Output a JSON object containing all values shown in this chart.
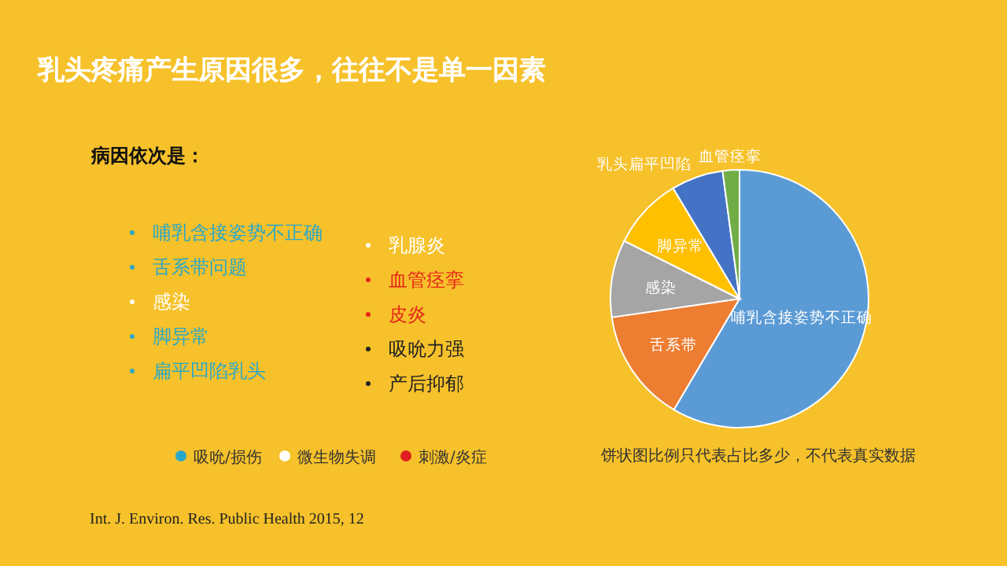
{
  "chart_data": [
    {
      "type": "pie",
      "title": "乳头疼痛产生原因很多，往往不是单一因素",
      "categories": [
        "哺乳含接姿势不正确",
        "舌系带",
        "感染",
        "脚异常",
        "乳头扁平凹陷",
        "血管痉挛"
      ],
      "values": [
        58.5,
        14.2,
        9.7,
        9,
        6.5,
        2.1
      ],
      "colors": [
        "#5b9bd5",
        "#ed7d31",
        "#a5a5a5",
        "#ffc000",
        "#4472c4",
        "#70ad47"
      ],
      "annotations": [
        "饼状图比例只代表占比多少，不代表真实数据",
        "Int. J. Environ. Res. Public Health 2015, 12"
      ]
    },
    {
      "type": "other",
      "title": "病因依次是：",
      "categories": [
        "哺乳含接姿势不正确",
        "舌系带问题",
        "感染",
        "脚异常",
        "扁平凹陷乳头",
        "乳腺炎",
        "血管痉挛",
        "皮炎",
        "吸吮力强",
        "产后抑郁"
      ],
      "colors": [
        "#2aa8c8",
        "#2aa8c8",
        "#ffffff",
        "#2aa8c8",
        "#2aa8c8",
        "#ffffff",
        "#e8231a",
        "#e8231a",
        "#222222",
        "#222222"
      ],
      "series": [
        {
          "name": "吸吮/损伤",
          "color": "#2aa8c8",
          "values": [
            null,
            null,
            null,
            null,
            null,
            null,
            null,
            null,
            null,
            null
          ]
        },
        {
          "name": "微生物失调",
          "color": "#ffffff",
          "values": [
            null,
            null,
            null,
            null,
            null,
            null,
            null,
            null,
            null,
            null
          ]
        },
        {
          "name": "刺激/炎症",
          "color": "#e02020",
          "values": [
            null,
            null,
            null,
            null,
            null,
            null,
            null,
            null,
            null,
            null
          ]
        }
      ]
    }
  ]
}
